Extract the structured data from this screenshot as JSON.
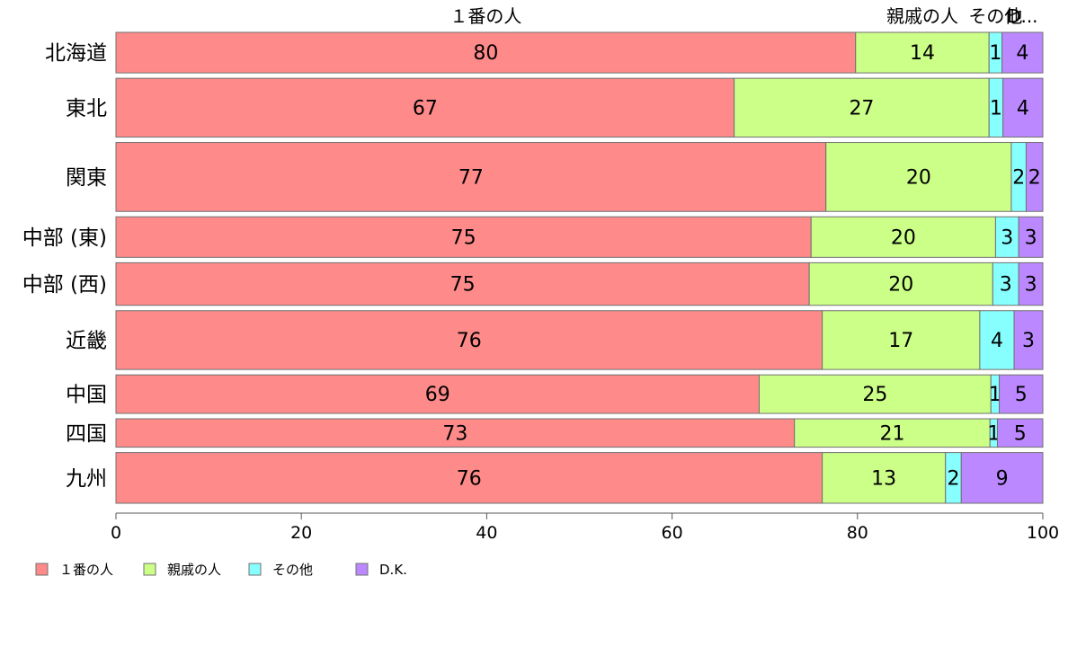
{
  "chart_data": {
    "type": "bar",
    "orientation": "horizontal",
    "stacked": true,
    "categories": [
      "北海道",
      "東北",
      "関東",
      "中部 (東)",
      "中部 (西)",
      "近畿",
      "中国",
      "四国",
      "九州"
    ],
    "category_weights": [
      1,
      1.45,
      1.7,
      1.0,
      1.05,
      1.45,
      0.95,
      0.7,
      1.25
    ],
    "series": [
      {
        "name": "１番の人",
        "color": "#ff8a8a",
        "values": [
          79.8,
          66.7,
          76.6,
          75.0,
          74.8,
          76.2,
          69.4,
          73.2,
          76.2
        ],
        "labels": [
          "80",
          "67",
          "77",
          "75",
          "75",
          "76",
          "69",
          "73",
          "76"
        ]
      },
      {
        "name": "親戚の人",
        "color": "#ccff88",
        "values": [
          14.4,
          27.5,
          20.0,
          19.9,
          19.8,
          17.0,
          25.0,
          21.1,
          13.3
        ],
        "labels": [
          "14",
          "27",
          "20",
          "20",
          "20",
          "17",
          "25",
          "21",
          "13"
        ]
      },
      {
        "name": "その他",
        "color": "#88ffff",
        "values": [
          1.4,
          1.5,
          1.6,
          2.5,
          2.8,
          3.7,
          0.9,
          0.8,
          1.7
        ],
        "labels": [
          "1",
          "1",
          "2",
          "3",
          "3",
          "4",
          "1",
          "1",
          "2"
        ]
      },
      {
        "name": "D.K.",
        "color": "#bb88ff",
        "values": [
          4.4,
          4.3,
          1.8,
          2.6,
          2.6,
          3.1,
          4.7,
          4.9,
          8.8
        ],
        "labels": [
          "4",
          "4",
          "2",
          "3",
          "3",
          "3",
          "5",
          "5",
          "9"
        ]
      }
    ],
    "top_labels": [
      "１番の人",
      "親戚の人",
      "その他",
      "D..."
    ],
    "xlim": [
      0,
      100
    ],
    "x_ticks": [
      "0",
      "20",
      "40",
      "60",
      "80",
      "100"
    ],
    "x_tick_values": [
      0,
      20,
      40,
      60,
      80,
      100
    ],
    "legend_position": "bottom-left",
    "grid": false
  }
}
